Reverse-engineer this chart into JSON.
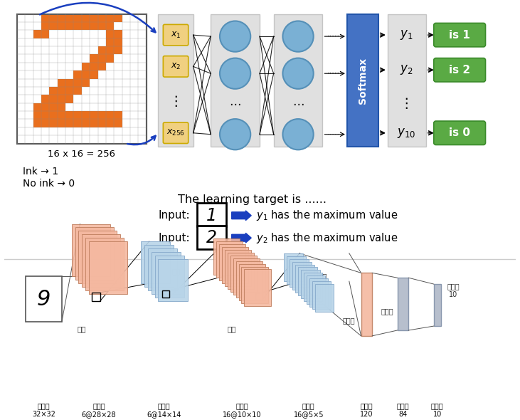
{
  "bg_color": "#ffffff",
  "orange_color": "#e8630a",
  "yellow_box_color": "#f0d080",
  "blue_node_color": "#7ab0d4",
  "softmax_color": "#4472c4",
  "arrow_color": "#1a3fbf",
  "green_box_color": "#5aaa44",
  "salmon_color": "#f4b8a0",
  "light_blue_color": "#b8d4e8",
  "label_16x16": "16 x 16 = 256",
  "label_ink1": "Ink → 1",
  "label_ink0": "No ink → 0",
  "title_text": "The learning target is ......",
  "input_label1": "Input:",
  "input_label2": "Input:",
  "bottom_labels": [
    "输入层\n32×32",
    "卷积层\n6@28×28",
    "采样层\n6@14×14",
    "卷积层\n16@10×10",
    "采样层\n16@5×5",
    "卷积层\n120",
    "连接层\n84",
    "输出层\n10"
  ]
}
